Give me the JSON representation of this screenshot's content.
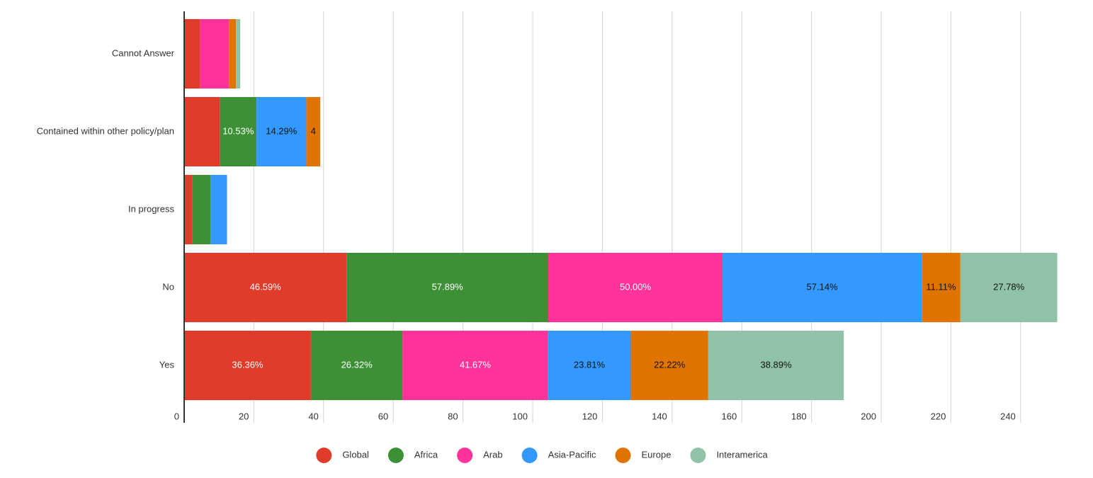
{
  "chart_data": {
    "type": "stacked-bar-horizontal",
    "categories": [
      "Cannot Answer",
      "Contained within other policy/plan",
      "In progress",
      "No",
      "Yes"
    ],
    "series": [
      {
        "name": "Global",
        "color": "#e03c2b",
        "values": [
          4.55,
          10.23,
          2.27,
          46.59,
          36.36
        ],
        "value_labels": [
          null,
          null,
          null,
          "46.59%",
          "36.36%"
        ]
      },
      {
        "name": "Africa",
        "color": "#3e9036",
        "values": [
          0,
          10.53,
          5.26,
          57.89,
          26.32
        ],
        "value_labels": [
          null,
          "10.53%",
          null,
          "57.89%",
          "26.32%"
        ]
      },
      {
        "name": "Arab",
        "color": "#ff3399",
        "values": [
          8.33,
          0,
          0,
          50.0,
          41.67
        ],
        "value_labels": [
          null,
          null,
          null,
          "50.00%",
          "41.67%"
        ]
      },
      {
        "name": "Asia-Pacific",
        "color": "#3399ff",
        "values": [
          0,
          14.29,
          4.76,
          57.14,
          23.81
        ],
        "value_labels": [
          null,
          "14.29%",
          null,
          "57.14%",
          "23.81%"
        ]
      },
      {
        "name": "Europe",
        "color": "#e07400",
        "values": [
          2,
          4,
          0,
          11.11,
          22.22
        ],
        "value_labels": [
          null,
          "4",
          null,
          "11.11%",
          "22.22%"
        ]
      },
      {
        "name": "Interamerica",
        "color": "#8fc2a6",
        "values": [
          1.2,
          0,
          0,
          27.78,
          38.89
        ],
        "value_labels": [
          null,
          null,
          null,
          "27.78%",
          "38.89%"
        ]
      }
    ],
    "xlim": [
      0,
      251
    ],
    "xticks": [
      0,
      20,
      40,
      60,
      80,
      100,
      120,
      140,
      160,
      180,
      200,
      220,
      240
    ],
    "grid": true,
    "legend": "bottom"
  }
}
